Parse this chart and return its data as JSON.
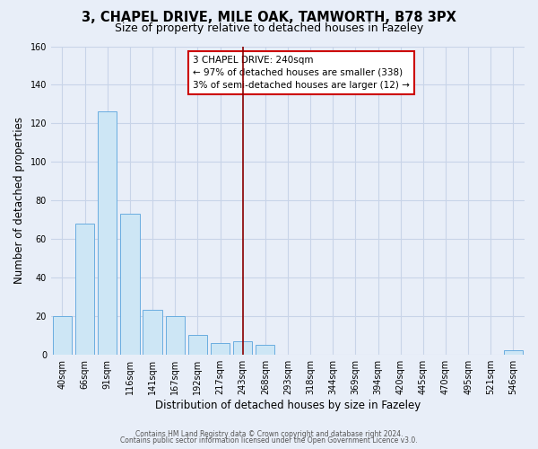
{
  "title": "3, CHAPEL DRIVE, MILE OAK, TAMWORTH, B78 3PX",
  "subtitle": "Size of property relative to detached houses in Fazeley",
  "xlabel": "Distribution of detached houses by size in Fazeley",
  "ylabel": "Number of detached properties",
  "bar_labels": [
    "40sqm",
    "66sqm",
    "91sqm",
    "116sqm",
    "141sqm",
    "167sqm",
    "192sqm",
    "217sqm",
    "243sqm",
    "268sqm",
    "293sqm",
    "318sqm",
    "344sqm",
    "369sqm",
    "394sqm",
    "420sqm",
    "445sqm",
    "470sqm",
    "495sqm",
    "521sqm",
    "546sqm"
  ],
  "bar_values": [
    20,
    68,
    126,
    73,
    23,
    20,
    10,
    6,
    7,
    5,
    0,
    0,
    0,
    0,
    0,
    0,
    0,
    0,
    0,
    0,
    2
  ],
  "bar_color": "#cde6f5",
  "bar_edge_color": "#6aade0",
  "vline_x": 8,
  "vline_color": "#8b0000",
  "ylim": [
    0,
    160
  ],
  "yticks": [
    0,
    20,
    40,
    60,
    80,
    100,
    120,
    140,
    160
  ],
  "annotation_title": "3 CHAPEL DRIVE: 240sqm",
  "annotation_line1": "← 97% of detached houses are smaller (338)",
  "annotation_line2": "3% of semi-detached houses are larger (12) →",
  "annotation_box_color": "#ffffff",
  "annotation_box_edge": "#cc0000",
  "footer1": "Contains HM Land Registry data © Crown copyright and database right 2024.",
  "footer2": "Contains public sector information licensed under the Open Government Licence v3.0.",
  "bg_color": "#e8eef8",
  "grid_color": "#c8d4e8",
  "title_fontsize": 10.5,
  "subtitle_fontsize": 9,
  "axis_label_fontsize": 8.5,
  "tick_fontsize": 7,
  "annotation_fontsize": 7.5,
  "footer_fontsize": 5.5
}
